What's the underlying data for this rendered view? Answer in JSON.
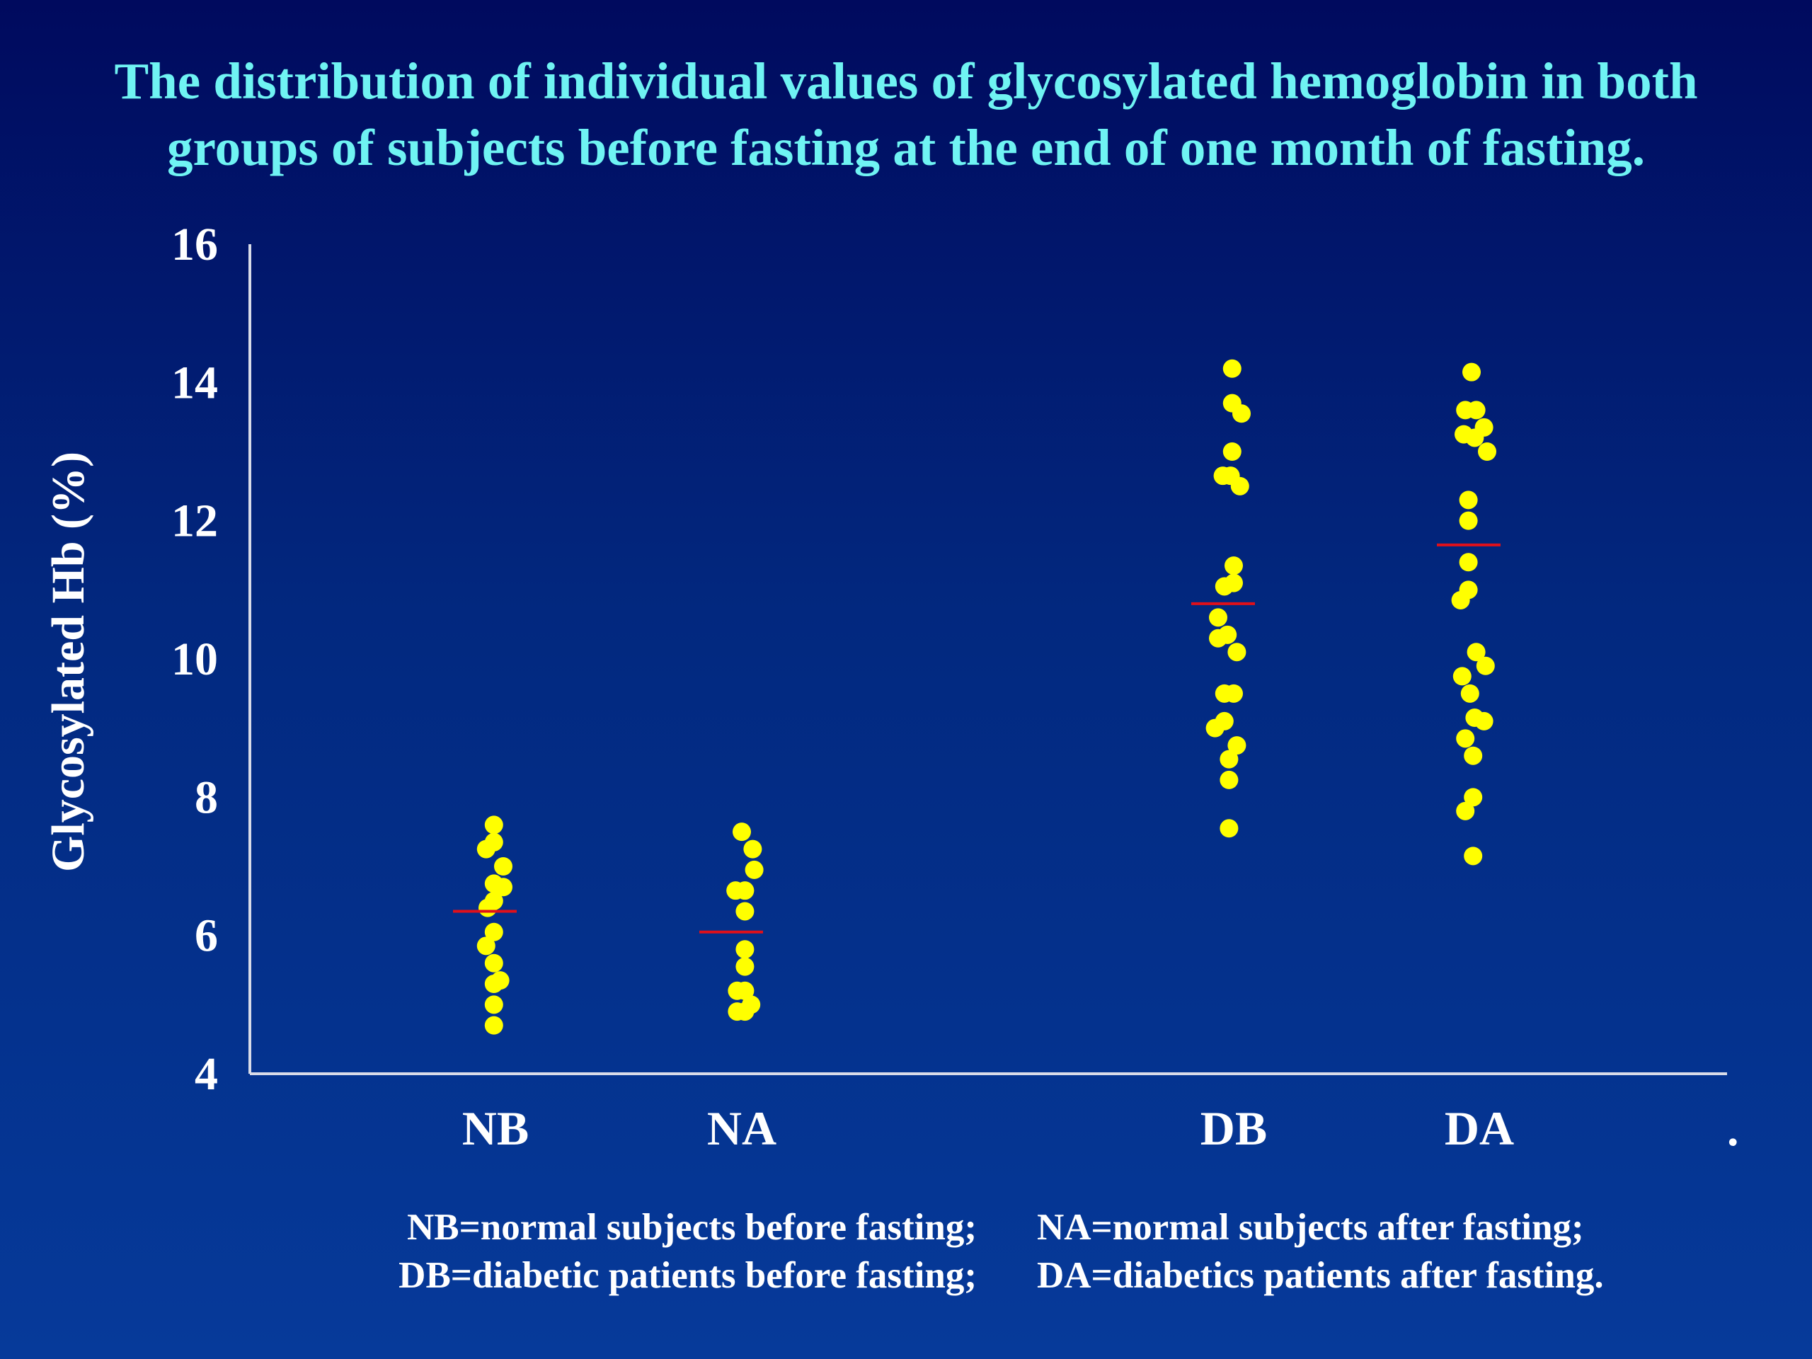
{
  "title": {
    "line1": "The distribution of individual values of glycosylated hemoglobin in both",
    "line2": "groups of subjects before fasting at the end of one month of fasting."
  },
  "legend": {
    "nb": "NB=normal subjects before fasting;",
    "na": "NA=normal subjects after fasting;",
    "db": "DB=diabetic patients before fasting;",
    "da": "DA=diabetics patients after fasting."
  },
  "stray_mark": ".",
  "colors": {
    "background_top": "#000a5e",
    "background_bottom": "#063a9a",
    "title": "#6ff3f3",
    "points": "#ffff00",
    "mean_line": "#e0101a",
    "axis": "#d8dbe8",
    "text": "#ffffff"
  },
  "chart_data": {
    "type": "scatter",
    "subtype": "dot-plot",
    "title": "",
    "xlabel": "",
    "ylabel": "Glycosylated Hb (%)",
    "ylim": [
      4,
      16
    ],
    "yticks": [
      4,
      6,
      8,
      10,
      12,
      14,
      16
    ],
    "grid": false,
    "categories": [
      "NB",
      "NA",
      "DB",
      "DA"
    ],
    "series": [
      {
        "category": "NB",
        "mean": 6.35,
        "points": [
          {
            "offset": -0.05,
            "y": 7.6
          },
          {
            "offset": -0.05,
            "y": 7.35
          },
          {
            "offset": -0.3,
            "y": 7.25
          },
          {
            "offset": 0.25,
            "y": 7.0
          },
          {
            "offset": -0.05,
            "y": 6.75
          },
          {
            "offset": 0.25,
            "y": 6.7
          },
          {
            "offset": -0.05,
            "y": 6.5
          },
          {
            "offset": -0.25,
            "y": 6.4
          },
          {
            "offset": -0.05,
            "y": 6.05
          },
          {
            "offset": -0.3,
            "y": 5.85
          },
          {
            "offset": -0.05,
            "y": 5.6
          },
          {
            "offset": 0.15,
            "y": 5.35
          },
          {
            "offset": -0.05,
            "y": 5.3
          },
          {
            "offset": -0.05,
            "y": 5.0
          },
          {
            "offset": -0.05,
            "y": 4.7
          }
        ]
      },
      {
        "category": "NA",
        "mean": 6.05,
        "points": [
          {
            "offset": 0.0,
            "y": 7.5
          },
          {
            "offset": 0.35,
            "y": 7.25
          },
          {
            "offset": 0.4,
            "y": 6.95
          },
          {
            "offset": -0.2,
            "y": 6.65
          },
          {
            "offset": 0.1,
            "y": 6.65
          },
          {
            "offset": 0.1,
            "y": 6.35
          },
          {
            "offset": 0.1,
            "y": 5.8
          },
          {
            "offset": 0.1,
            "y": 5.55
          },
          {
            "offset": -0.15,
            "y": 5.2
          },
          {
            "offset": 0.1,
            "y": 5.2
          },
          {
            "offset": -0.15,
            "y": 4.9
          },
          {
            "offset": 0.1,
            "y": 4.9
          },
          {
            "offset": 0.3,
            "y": 5.0
          }
        ]
      },
      {
        "category": "DB",
        "mean": 10.8,
        "points": [
          {
            "offset": -0.05,
            "y": 14.2
          },
          {
            "offset": -0.05,
            "y": 13.7
          },
          {
            "offset": 0.25,
            "y": 13.55
          },
          {
            "offset": -0.05,
            "y": 13.0
          },
          {
            "offset": -0.35,
            "y": 12.65
          },
          {
            "offset": -0.1,
            "y": 12.65
          },
          {
            "offset": 0.2,
            "y": 12.5
          },
          {
            "offset": 0.0,
            "y": 11.35
          },
          {
            "offset": -0.3,
            "y": 11.05
          },
          {
            "offset": 0.0,
            "y": 11.1
          },
          {
            "offset": -0.5,
            "y": 10.6
          },
          {
            "offset": -0.5,
            "y": 10.3
          },
          {
            "offset": -0.2,
            "y": 10.35
          },
          {
            "offset": 0.1,
            "y": 10.1
          },
          {
            "offset": -0.3,
            "y": 9.5
          },
          {
            "offset": 0.0,
            "y": 9.5
          },
          {
            "offset": -0.3,
            "y": 9.1
          },
          {
            "offset": -0.6,
            "y": 9.0
          },
          {
            "offset": 0.1,
            "y": 8.75
          },
          {
            "offset": -0.15,
            "y": 8.55
          },
          {
            "offset": -0.15,
            "y": 8.25
          },
          {
            "offset": -0.15,
            "y": 7.55
          }
        ]
      },
      {
        "category": "DA",
        "mean": 11.65,
        "points": [
          {
            "offset": -0.25,
            "y": 14.15
          },
          {
            "offset": -0.45,
            "y": 13.6
          },
          {
            "offset": -0.1,
            "y": 13.6
          },
          {
            "offset": -0.5,
            "y": 13.25
          },
          {
            "offset": -0.15,
            "y": 13.2
          },
          {
            "offset": 0.15,
            "y": 13.35
          },
          {
            "offset": 0.25,
            "y": 13.0
          },
          {
            "offset": -0.35,
            "y": 12.3
          },
          {
            "offset": -0.35,
            "y": 12.0
          },
          {
            "offset": -0.35,
            "y": 11.4
          },
          {
            "offset": -0.6,
            "y": 10.85
          },
          {
            "offset": -0.35,
            "y": 11.0
          },
          {
            "offset": -0.1,
            "y": 10.1
          },
          {
            "offset": 0.2,
            "y": 9.9
          },
          {
            "offset": -0.55,
            "y": 9.75
          },
          {
            "offset": -0.3,
            "y": 9.5
          },
          {
            "offset": -0.15,
            "y": 9.15
          },
          {
            "offset": 0.15,
            "y": 9.1
          },
          {
            "offset": -0.45,
            "y": 8.85
          },
          {
            "offset": -0.2,
            "y": 8.6
          },
          {
            "offset": -0.2,
            "y": 8.0
          },
          {
            "offset": -0.45,
            "y": 7.8
          },
          {
            "offset": -0.2,
            "y": 7.15
          }
        ]
      }
    ]
  }
}
